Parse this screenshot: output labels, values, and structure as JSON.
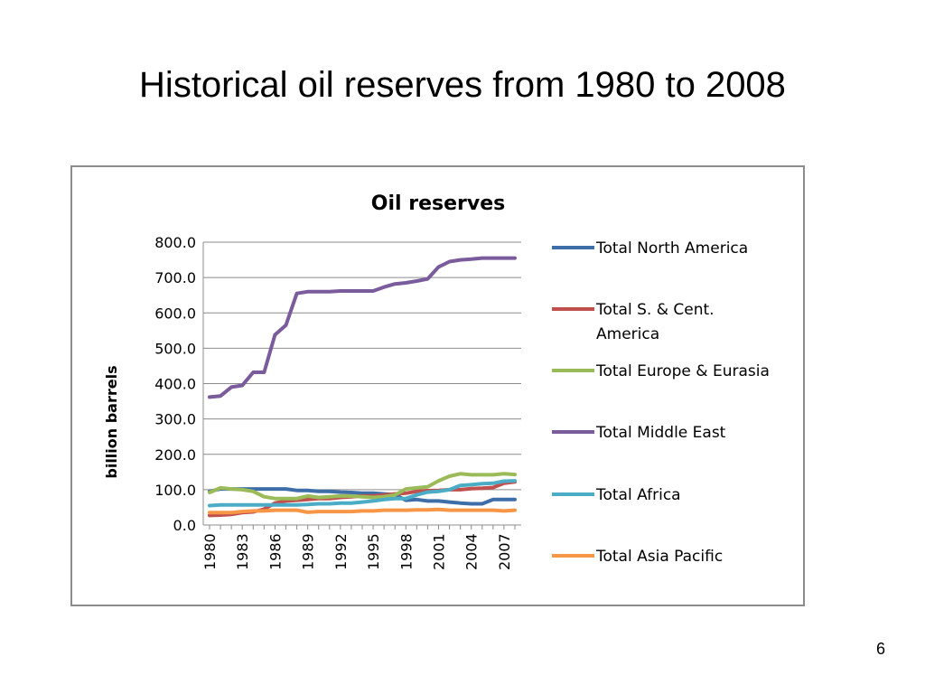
{
  "slide": {
    "title": "Historical oil reserves from 1980 to 2008",
    "page_number": "6"
  },
  "chart_data": {
    "type": "line",
    "title": "Oil reserves",
    "xlabel": "",
    "ylabel": "billion barrels",
    "ylim": [
      0,
      800
    ],
    "yticks": [
      "0.0",
      "100.0",
      "200.0",
      "300.0",
      "400.0",
      "500.0",
      "600.0",
      "700.0",
      "800.0"
    ],
    "x": [
      1980,
      1981,
      1982,
      1983,
      1984,
      1985,
      1986,
      1987,
      1988,
      1989,
      1990,
      1991,
      1992,
      1993,
      1994,
      1995,
      1996,
      1997,
      1998,
      1999,
      2000,
      2001,
      2002,
      2003,
      2004,
      2005,
      2006,
      2007,
      2008
    ],
    "xticks": [
      "1980",
      "1983",
      "1986",
      "1989",
      "1992",
      "1995",
      "1998",
      "2001",
      "2004",
      "2007"
    ],
    "grid": true,
    "legend_position": "right",
    "series": [
      {
        "name": "Total North America",
        "color": "#3d6ea8",
        "values": [
          95,
          102,
          102,
          102,
          102,
          102,
          102,
          102,
          98,
          98,
          95,
          95,
          93,
          92,
          90,
          90,
          88,
          86,
          70,
          72,
          68,
          68,
          65,
          62,
          60,
          60,
          72,
          72,
          72
        ]
      },
      {
        "name": "Total S. & Cent. America",
        "color": "#c0504d",
        "values": [
          27,
          28,
          30,
          35,
          37,
          45,
          62,
          68,
          70,
          72,
          75,
          75,
          78,
          80,
          82,
          82,
          85,
          88,
          90,
          95,
          97,
          98,
          100,
          100,
          103,
          104,
          106,
          118,
          122
        ]
      },
      {
        "name": "Total Europe & Eurasia",
        "color": "#9bbb59",
        "values": [
          92,
          105,
          102,
          100,
          95,
          80,
          75,
          75,
          75,
          82,
          78,
          80,
          82,
          82,
          80,
          78,
          80,
          85,
          102,
          105,
          108,
          125,
          138,
          145,
          142,
          142,
          142,
          145,
          143
        ]
      },
      {
        "name": "Total Middle East",
        "color": "#7a5b9c",
        "values": [
          362,
          365,
          390,
          395,
          432,
          432,
          538,
          565,
          655,
          660,
          660,
          660,
          662,
          662,
          662,
          662,
          673,
          682,
          685,
          690,
          696,
          730,
          745,
          750,
          752,
          755,
          755,
          755,
          755
        ]
      },
      {
        "name": "Total Africa",
        "color": "#4bacc6",
        "values": [
          55,
          57,
          57,
          57,
          57,
          57,
          57,
          57,
          57,
          58,
          60,
          60,
          62,
          62,
          65,
          68,
          72,
          75,
          75,
          85,
          93,
          95,
          100,
          112,
          114,
          117,
          118,
          124,
          125
        ]
      },
      {
        "name": "Total Asia Pacific",
        "color": "#f79646",
        "values": [
          35,
          35,
          35,
          38,
          40,
          40,
          42,
          42,
          42,
          36,
          38,
          38,
          38,
          38,
          40,
          40,
          42,
          42,
          42,
          43,
          43,
          44,
          42,
          42,
          42,
          42,
          42,
          40,
          42
        ]
      }
    ]
  }
}
